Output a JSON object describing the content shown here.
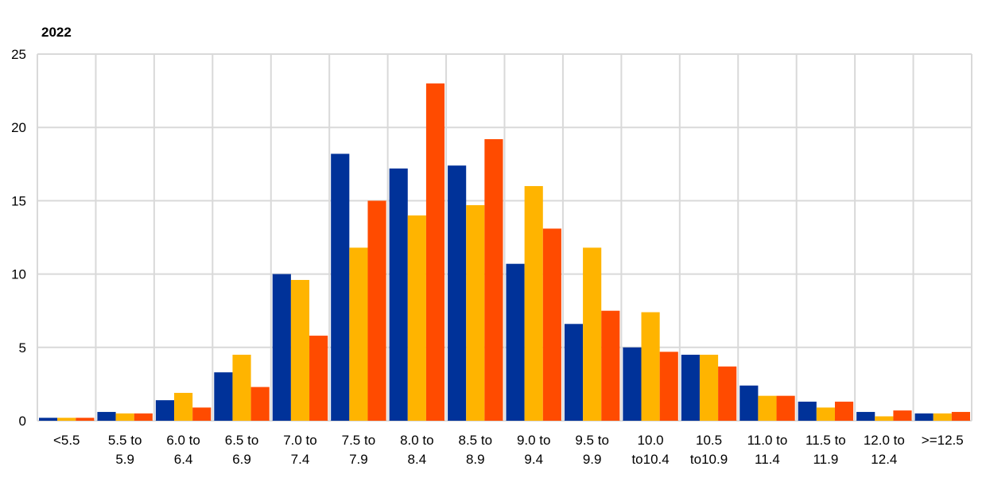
{
  "chart_data": {
    "type": "bar",
    "title": "2022",
    "categories": [
      "<5.5",
      "5.5 to\n5.9",
      "6.0 to\n6.4",
      "6.5 to\n6.9",
      "7.0 to\n7.4",
      "7.5 to\n7.9",
      "8.0 to\n8.4",
      "8.5 to\n8.9",
      "9.0 to\n9.4",
      "9.5 to\n9.9",
      "10.0\nto10.4",
      "10.5\nto10.9",
      "11.0 to\n11.4",
      "11.5 to\n11.9",
      "12.0 to\n12.4",
      ">=12.5"
    ],
    "series": [
      {
        "color": "#003299",
        "values": [
          0.2,
          0.6,
          1.4,
          3.3,
          10.0,
          18.2,
          17.2,
          17.4,
          10.7,
          6.6,
          5.0,
          4.5,
          2.4,
          1.3,
          0.6,
          0.5
        ]
      },
      {
        "color": "#ffb400",
        "values": [
          0.2,
          0.5,
          1.9,
          4.5,
          9.6,
          11.8,
          14.0,
          14.7,
          16.0,
          11.8,
          7.4,
          4.5,
          1.7,
          0.9,
          0.3,
          0.5
        ]
      },
      {
        "color": "#ff4b00",
        "values": [
          0.2,
          0.5,
          0.9,
          2.3,
          5.8,
          15.0,
          23.0,
          19.2,
          13.1,
          7.5,
          4.7,
          3.7,
          1.7,
          1.3,
          0.7,
          0.6
        ]
      }
    ],
    "ylim": [
      0,
      25
    ],
    "yticks": [
      0,
      5,
      10,
      15,
      20,
      25
    ],
    "grid": true
  }
}
